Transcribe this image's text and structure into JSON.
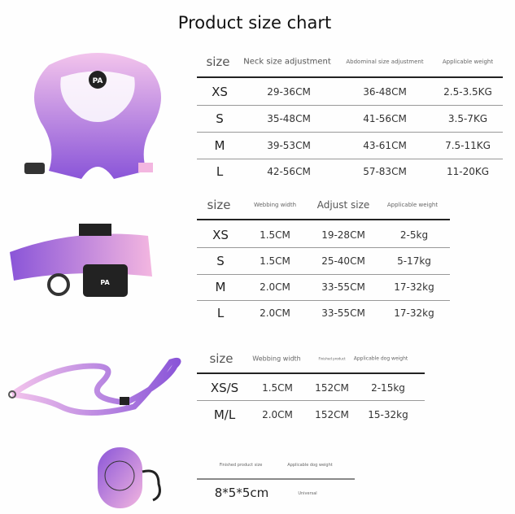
{
  "title": "Product size chart",
  "harness": {
    "headers": [
      "size",
      "Neck size adjustment",
      "Abdominal size adjustment",
      "Applicable weight"
    ],
    "rows": [
      [
        "XS",
        "29-36CM",
        "36-48CM",
        "2.5-3.5KG"
      ],
      [
        "S",
        "35-48CM",
        "41-56CM",
        "3.5-7KG"
      ],
      [
        "M",
        "39-53CM",
        "43-61CM",
        "7.5-11KG"
      ],
      [
        "L",
        "42-56CM",
        "57-83CM",
        "11-20KG"
      ]
    ]
  },
  "collar": {
    "headers": [
      "size",
      "Webbing width",
      "Adjust size",
      "Applicable weight"
    ],
    "rows": [
      [
        "XS",
        "1.5CM",
        "19-28CM",
        "2-5kg"
      ],
      [
        "S",
        "1.5CM",
        "25-40CM",
        "5-17kg"
      ],
      [
        "M",
        "2.0CM",
        "33-55CM",
        "17-32kg"
      ],
      [
        "L",
        "2.0CM",
        "33-55CM",
        "17-32kg"
      ]
    ]
  },
  "leash": {
    "headers": [
      "size",
      "Webbing width",
      "Finished product",
      "Applicable dog weight"
    ],
    "rows": [
      [
        "XS/S",
        "1.5CM",
        "152CM",
        "2-15kg"
      ],
      [
        "M/L",
        "2.0CM",
        "152CM",
        "15-32kg"
      ]
    ]
  },
  "bag": {
    "headers": [
      "Finished product size",
      "Applicable dog weight"
    ],
    "rows": [
      [
        "8*5*5cm",
        "Universal"
      ]
    ]
  },
  "logo_text": "PA",
  "colors": {
    "pink": "#f3b6e0",
    "purple": "#8a55d8",
    "lilac": "#c99be8"
  }
}
